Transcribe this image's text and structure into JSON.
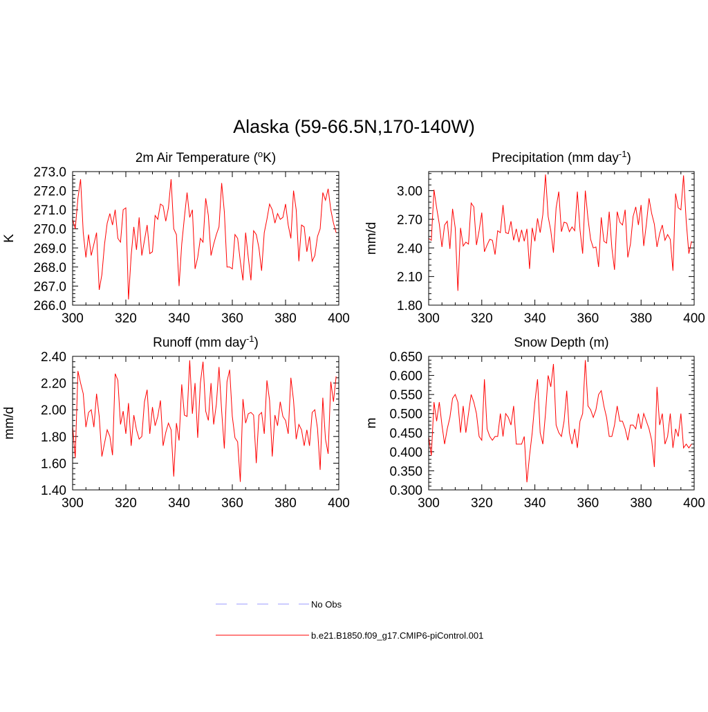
{
  "figure_title": "Alaska (59-66.5N,170-140W)",
  "legend": [
    {
      "label": "No Obs",
      "color": "#9a9aff",
      "dash": "dashed"
    },
    {
      "label": "b.e21.B1850.f09_g17.CMIP6-piControl.001",
      "color": "#ff0000",
      "dash": "solid"
    }
  ],
  "chart_data": [
    {
      "type": "line",
      "title": "2m Air Temperature (",
      "title_sup": "o",
      "title_suffix": "K)",
      "ylabel": "K",
      "xlim": [
        300,
        400
      ],
      "ylim": [
        266.0,
        273.0
      ],
      "xticks": [
        300,
        320,
        340,
        360,
        380,
        400
      ],
      "yticks": [
        "266.0",
        "267.0",
        "268.0",
        "269.0",
        "270.0",
        "271.0",
        "272.0",
        "273.0"
      ],
      "series": [
        {
          "color": "#ff0000",
          "x_start": 300,
          "x_step": 1,
          "values": [
            270.5,
            270.0,
            271.6,
            272.6,
            269.8,
            268.5,
            269.7,
            268.6,
            269.2,
            269.8,
            266.8,
            267.6,
            269.2,
            270.3,
            270.8,
            270.2,
            271.0,
            269.5,
            269.3,
            271.0,
            271.1,
            266.3,
            268.6,
            270.1,
            268.9,
            270.6,
            268.6,
            269.4,
            270.2,
            268.7,
            268.8,
            270.7,
            270.5,
            271.3,
            271.2,
            270.4,
            271.1,
            272.6,
            270.0,
            269.7,
            267.0,
            269.2,
            270.6,
            271.9,
            270.6,
            271.0,
            267.9,
            268.5,
            269.5,
            269.3,
            271.6,
            270.7,
            268.6,
            269.2,
            269.7,
            270.1,
            272.4,
            270.9,
            268.0,
            268.0,
            267.9,
            269.7,
            269.5,
            268.3,
            267.3,
            269.8,
            268.5,
            267.3,
            269.9,
            269.7,
            269.0,
            267.8,
            269.8,
            270.5,
            271.3,
            271.0,
            270.3,
            270.8,
            270.5,
            270.6,
            271.3,
            270.2,
            269.5,
            272.0,
            271.0,
            268.3,
            270.2,
            270.1,
            268.8,
            269.6,
            268.3,
            268.6,
            269.6,
            270.0,
            271.9,
            271.5,
            272.1,
            271.0,
            270.3,
            269.8
          ]
        }
      ]
    },
    {
      "type": "line",
      "title": "Precipitation (mm day",
      "title_sup": "-1",
      "title_suffix": ")",
      "ylabel": "mm/d",
      "xlim": [
        300,
        400
      ],
      "ylim": [
        1.8,
        3.2
      ],
      "xticks": [
        300,
        320,
        340,
        360,
        380,
        400
      ],
      "yticks": [
        "1.80",
        "2.10",
        "2.40",
        "2.70",
        "3.00"
      ],
      "series": [
        {
          "color": "#ff0000",
          "x_start": 300,
          "x_step": 1,
          "values": [
            2.5,
            2.48,
            3.01,
            2.82,
            2.65,
            2.41,
            2.64,
            2.68,
            2.39,
            2.81,
            2.61,
            1.95,
            2.61,
            2.42,
            2.46,
            2.44,
            2.87,
            2.83,
            2.43,
            2.58,
            2.77,
            2.36,
            2.43,
            2.49,
            2.48,
            2.33,
            2.58,
            2.56,
            2.85,
            2.56,
            2.55,
            2.68,
            2.48,
            2.6,
            2.46,
            2.59,
            2.47,
            2.6,
            2.18,
            2.61,
            2.47,
            2.71,
            2.56,
            2.75,
            3.17,
            2.73,
            2.58,
            2.35,
            2.82,
            2.99,
            2.57,
            2.67,
            2.66,
            2.57,
            2.62,
            2.58,
            2.99,
            2.59,
            2.34,
            3.0,
            2.71,
            2.49,
            2.4,
            2.41,
            2.2,
            2.72,
            2.47,
            2.45,
            2.78,
            2.4,
            2.17,
            2.78,
            2.67,
            2.64,
            2.8,
            2.3,
            2.44,
            2.73,
            2.83,
            2.64,
            2.85,
            2.42,
            2.65,
            2.92,
            2.76,
            2.65,
            2.41,
            2.55,
            2.64,
            2.48,
            2.54,
            2.49,
            2.16,
            2.97,
            2.82,
            2.8,
            3.16,
            2.68,
            2.34,
            2.47
          ]
        }
      ]
    },
    {
      "type": "line",
      "title": "Runoff (mm day",
      "title_sup": "-1",
      "title_suffix": ")",
      "ylabel": "mm/d",
      "xlim": [
        300,
        400
      ],
      "ylim": [
        1.4,
        2.4
      ],
      "xticks": [
        300,
        320,
        340,
        360,
        380,
        400
      ],
      "yticks": [
        "1.40",
        "1.60",
        "1.80",
        "2.00",
        "2.20",
        "2.40"
      ],
      "series": [
        {
          "color": "#ff0000",
          "x_start": 300,
          "x_step": 1,
          "values": [
            1.88,
            1.64,
            2.29,
            2.2,
            2.12,
            1.87,
            1.98,
            2.0,
            1.87,
            2.12,
            1.95,
            1.65,
            1.75,
            1.85,
            1.8,
            1.66,
            2.27,
            2.22,
            1.89,
            1.99,
            1.82,
            2.05,
            1.73,
            1.96,
            1.85,
            1.78,
            1.8,
            2.06,
            2.15,
            1.82,
            2.02,
            1.88,
            1.95,
            2.07,
            1.73,
            1.83,
            1.9,
            1.85,
            1.5,
            1.9,
            1.77,
            2.19,
            1.96,
            1.95,
            2.37,
            1.97,
            2.2,
            1.79,
            2.2,
            2.36,
            1.99,
            1.92,
            2.2,
            1.89,
            2.04,
            2.32,
            1.99,
            1.71,
            2.21,
            2.3,
            1.95,
            1.79,
            1.76,
            1.46,
            2.08,
            1.9,
            1.97,
            1.98,
            1.96,
            1.6,
            1.96,
            1.98,
            1.82,
            2.22,
            2.07,
            1.65,
            1.96,
            1.88,
            2.06,
            1.95,
            1.92,
            1.82,
            2.24,
            2.07,
            1.78,
            1.89,
            1.85,
            1.73,
            1.85,
            1.73,
            1.98,
            2.0,
            1.86,
            1.55,
            2.09,
            1.78,
            1.67,
            2.21,
            2.06,
            2.25
          ]
        }
      ]
    },
    {
      "type": "line",
      "title": "Snow Depth (m)",
      "title_sup": "",
      "title_suffix": "",
      "ylabel": "m",
      "xlim": [
        300,
        400
      ],
      "ylim": [
        0.3,
        0.65
      ],
      "xticks": [
        300,
        320,
        340,
        360,
        380,
        400
      ],
      "yticks": [
        "0.300",
        "0.350",
        "0.400",
        "0.450",
        "0.500",
        "0.550",
        "0.600",
        "0.650"
      ],
      "series": [
        {
          "color": "#ff0000",
          "x_start": 300,
          "x_step": 1,
          "values": [
            0.44,
            0.39,
            0.53,
            0.48,
            0.53,
            0.47,
            0.42,
            0.46,
            0.49,
            0.54,
            0.55,
            0.53,
            0.45,
            0.52,
            0.45,
            0.5,
            0.55,
            0.53,
            0.5,
            0.44,
            0.43,
            0.59,
            0.46,
            0.44,
            0.43,
            0.44,
            0.44,
            0.5,
            0.44,
            0.5,
            0.49,
            0.47,
            0.52,
            0.42,
            0.42,
            0.42,
            0.44,
            0.32,
            0.39,
            0.45,
            0.53,
            0.59,
            0.45,
            0.42,
            0.5,
            0.6,
            0.57,
            0.63,
            0.47,
            0.45,
            0.44,
            0.48,
            0.56,
            0.45,
            0.42,
            0.46,
            0.41,
            0.48,
            0.5,
            0.64,
            0.52,
            0.51,
            0.49,
            0.51,
            0.55,
            0.56,
            0.52,
            0.49,
            0.44,
            0.44,
            0.47,
            0.52,
            0.48,
            0.48,
            0.46,
            0.43,
            0.47,
            0.47,
            0.46,
            0.5,
            0.46,
            0.5,
            0.48,
            0.46,
            0.43,
            0.36,
            0.57,
            0.47,
            0.5,
            0.42,
            0.44,
            0.5,
            0.41,
            0.46,
            0.44,
            0.5,
            0.41,
            0.42,
            0.41,
            0.42
          ]
        }
      ]
    }
  ]
}
